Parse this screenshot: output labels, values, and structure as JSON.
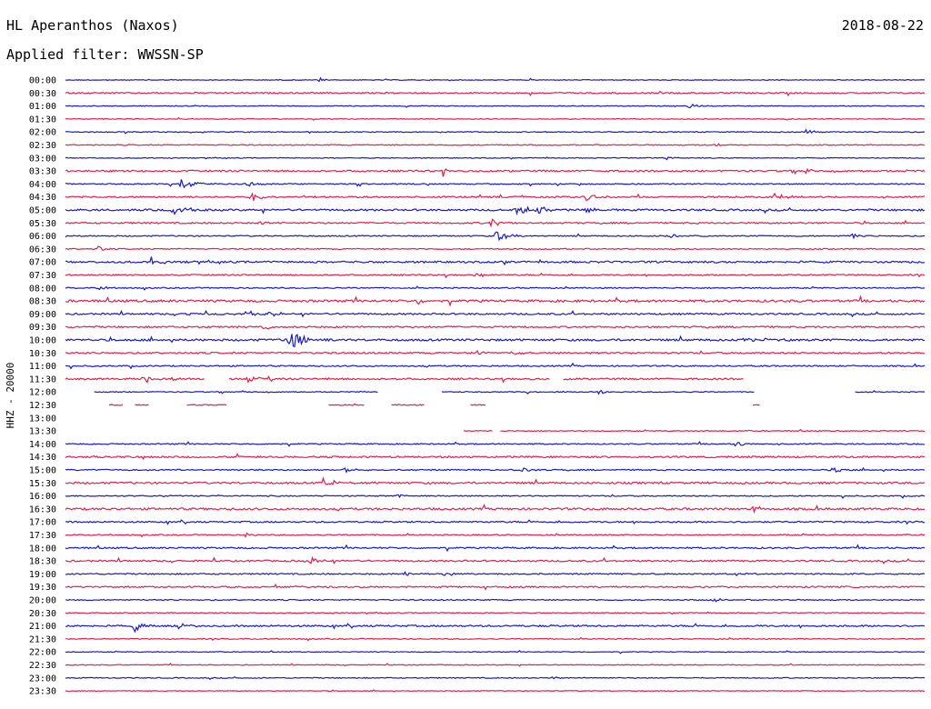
{
  "header": {
    "station": "HL Aperanthos (Naxos)",
    "date": "2018-08-22",
    "filter": "Applied filter: WWSSN-SP",
    "channel": "HHZ - 20000"
  },
  "colors": {
    "blue": "#1a1acc",
    "red": "#e0204a"
  },
  "chart_data": {
    "type": "line",
    "title": "HL Aperanthos (Naxos)",
    "ylabel": "HHZ - 20000",
    "row_labels": [
      "00:00",
      "00:30",
      "01:00",
      "01:30",
      "02:00",
      "02:30",
      "03:00",
      "03:30",
      "04:00",
      "04:30",
      "05:00",
      "05:30",
      "06:00",
      "06:30",
      "07:00",
      "07:30",
      "08:00",
      "08:30",
      "09:00",
      "09:30",
      "10:00",
      "10:30",
      "11:00",
      "11:30",
      "12:00",
      "12:30",
      "13:00",
      "13:30",
      "14:00",
      "14:30",
      "15:00",
      "15:30",
      "16:00",
      "16:30",
      "17:00",
      "17:30",
      "18:00",
      "18:30",
      "19:00",
      "19:30",
      "20:00",
      "20:30",
      "21:00",
      "21:30",
      "22:00",
      "22:30",
      "23:00",
      "23:30"
    ],
    "row_noise": [
      0.4,
      0.7,
      0.4,
      0.4,
      0.5,
      0.5,
      0.4,
      0.9,
      0.6,
      0.8,
      1.0,
      0.8,
      0.6,
      0.6,
      1.0,
      0.7,
      0.6,
      1.2,
      0.9,
      0.9,
      1.1,
      0.9,
      0.7,
      0.9,
      0.5,
      0.5,
      0.5,
      0.5,
      0.6,
      0.9,
      0.7,
      1.0,
      0.6,
      1.1,
      0.8,
      0.6,
      0.8,
      0.9,
      0.7,
      0.8,
      0.6,
      0.5,
      0.9,
      0.5,
      0.4,
      0.4,
      0.5,
      0.4
    ],
    "events": [
      [
        [
          295,
          3,
          0.25
        ]
      ],
      [],
      [
        [
          725,
          3,
          0.3
        ]
      ],
      [],
      [
        [
          860,
          4,
          0.25
        ]
      ],
      [
        [
          755,
          3,
          0.2
        ]
      ],
      [
        [
          700,
          2,
          0.2
        ]
      ],
      [
        [
          440,
          5,
          0.15
        ],
        [
          860,
          5,
          0.15
        ]
      ],
      [
        [
          135,
          6,
          0.4
        ],
        [
          210,
          4,
          0.3
        ]
      ],
      [
        [
          215,
          5,
          0.35
        ],
        [
          605,
          4,
          0.35
        ],
        [
          825,
          4,
          0.35
        ]
      ],
      [
        [
          125,
          7,
          0.4
        ],
        [
          525,
          5,
          0.35
        ],
        [
          550,
          5,
          0.3
        ],
        [
          607,
          4,
          0.4
        ]
      ],
      [
        [
          225,
          3,
          0.3
        ],
        [
          495,
          5,
          0.4
        ]
      ],
      [
        [
          500,
          8,
          0.4
        ],
        [
          705,
          3,
          0.2
        ],
        [
          915,
          3,
          0.2
        ]
      ],
      [
        [
          38,
          4,
          0.2
        ]
      ],
      [
        [
          100,
          6,
          0.15
        ]
      ],
      [
        [
          478,
          3,
          0.3
        ]
      ],
      [
        [
          38,
          3,
          0.2
        ]
      ],
      [
        [
          410,
          5,
          0.15
        ]
      ],
      [
        [
          140,
          3,
          0.3
        ],
        [
          210,
          4,
          0.3
        ],
        [
          238,
          3,
          0.4
        ]
      ],
      [
        [
          230,
          3,
          0.3
        ]
      ],
      [
        [
          260,
          12,
          0.5
        ],
        [
          790,
          2,
          0.8
        ]
      ],
      [
        [
          478,
          3,
          0.3
        ],
        [
          520,
          3,
          0.3
        ]
      ],
      [],
      [
        [
          90,
          8,
          0.2
        ],
        [
          120,
          4,
          0.3
        ],
        [
          213,
          4,
          0.3
        ]
      ],
      [
        [
          620,
          4,
          0.15
        ]
      ],
      [],
      [],
      [],
      [
        [
          780,
          4,
          0.25
        ]
      ],
      [],
      [
        [
          325,
          4,
          0.3
        ],
        [
          532,
          3,
          0.3
        ],
        [
          895,
          5,
          0.2
        ]
      ],
      [
        [
          300,
          6,
          0.4
        ]
      ],
      [
        [
          385,
          4,
          0.2
        ]
      ],
      [
        [
          800,
          5,
          0.2
        ]
      ],
      [],
      [
        [
          210,
          5,
          0.15
        ]
      ],
      [],
      [
        [
          285,
          5,
          0.3
        ]
      ],
      [
        [
          395,
          3,
          0.3
        ],
        [
          442,
          4,
          0.3
        ]
      ],
      [],
      [
        [
          755,
          3,
          0.2
        ]
      ],
      [],
      [
        [
          80,
          8,
          0.2
        ],
        [
          130,
          3,
          0.4
        ]
      ],
      [],
      [],
      [],
      [
        [
          565,
          2,
          0.2
        ]
      ],
      []
    ],
    "gaps": {
      "23": [
        [
          163,
          190
        ],
        [
          565,
          578
        ],
        [
          790,
          1000
        ]
      ],
      "24": [
        [
          0,
          32
        ],
        [
          364,
          437
        ],
        [
          802,
          918
        ]
      ],
      "25": [
        [
          0,
          50
        ],
        [
          68,
          80
        ],
        [
          98,
          140
        ],
        [
          188,
          305
        ],
        [
          348,
          378
        ],
        [
          418,
          470
        ],
        [
          490,
          800
        ],
        [
          808,
          1000
        ]
      ],
      "26": [
        [
          0,
          1000
        ]
      ],
      "27": [
        [
          0,
          463
        ],
        [
          497,
          505
        ]
      ]
    }
  }
}
